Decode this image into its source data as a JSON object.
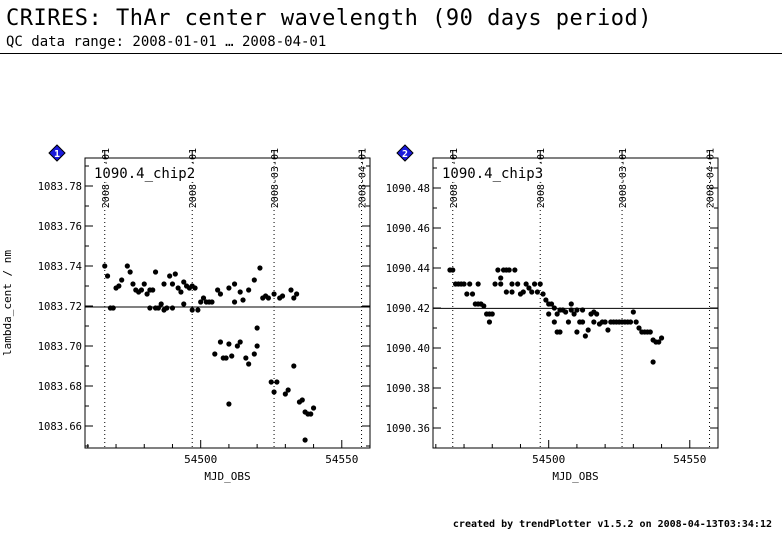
{
  "header": {
    "title": "CRIRES: ThAr center wavelength (90 days period)",
    "subtitle": "QC data range: 2008-01-01 … 2008-04-01"
  },
  "footer": {
    "text": "created by trendPlotter v1.5.2 on 2008-04-13T03:34:12"
  },
  "colors": {
    "badge": "#1a1adc",
    "badge_border": "#000000",
    "points": "#000000",
    "axes": "#000000"
  },
  "chart_data": [
    {
      "type": "scatter",
      "badge": "1",
      "label": "1090.4_chip2",
      "xlabel": "MJD_OBS",
      "ylabel": "lambda_cent / nm",
      "xlim": [
        54459,
        54560
      ],
      "ylim": [
        1083.649,
        1083.794
      ],
      "xticks": [
        54500,
        54550
      ],
      "yticks": [
        1083.66,
        1083.68,
        1083.7,
        1083.72,
        1083.74,
        1083.76,
        1083.78
      ],
      "ytick_labels": [
        "1083.66",
        "1083.68",
        "1083.70",
        "1083.72",
        "1083.74",
        "1083.76",
        "1083.78"
      ],
      "date_markers": [
        {
          "mjd": 54466,
          "label": "2008-01-01"
        },
        {
          "mjd": 54497,
          "label": "2008-02-01"
        },
        {
          "mjd": 54526,
          "label": "2008-03-01"
        },
        {
          "mjd": 54557,
          "label": "2008-04-01"
        }
      ],
      "reference_line": 1083.7195,
      "points": [
        [
          54466,
          1083.74
        ],
        [
          54467,
          1083.735
        ],
        [
          54468,
          1083.719
        ],
        [
          54469,
          1083.719
        ],
        [
          54470,
          1083.729
        ],
        [
          54471,
          1083.73
        ],
        [
          54472,
          1083.733
        ],
        [
          54474,
          1083.74
        ],
        [
          54475,
          1083.737
        ],
        [
          54476,
          1083.731
        ],
        [
          54477,
          1083.728
        ],
        [
          54478,
          1083.727
        ],
        [
          54479,
          1083.728
        ],
        [
          54480,
          1083.731
        ],
        [
          54481,
          1083.726
        ],
        [
          54482,
          1083.728
        ],
        [
          54482,
          1083.719
        ],
        [
          54483,
          1083.728
        ],
        [
          54484,
          1083.737
        ],
        [
          54484,
          1083.719
        ],
        [
          54485,
          1083.719
        ],
        [
          54486,
          1083.721
        ],
        [
          54487,
          1083.731
        ],
        [
          54487,
          1083.718
        ],
        [
          54488,
          1083.719
        ],
        [
          54489,
          1083.735
        ],
        [
          54490,
          1083.731
        ],
        [
          54490,
          1083.719
        ],
        [
          54491,
          1083.736
        ],
        [
          54492,
          1083.729
        ],
        [
          54493,
          1083.727
        ],
        [
          54494,
          1083.732
        ],
        [
          54494,
          1083.721
        ],
        [
          54495,
          1083.73
        ],
        [
          54496,
          1083.729
        ],
        [
          54497,
          1083.73
        ],
        [
          54497,
          1083.718
        ],
        [
          54498,
          1083.729
        ],
        [
          54499,
          1083.718
        ],
        [
          54500,
          1083.722
        ],
        [
          54501,
          1083.724
        ],
        [
          54502,
          1083.722
        ],
        [
          54503,
          1083.722
        ],
        [
          54504,
          1083.722
        ],
        [
          54505,
          1083.696
        ],
        [
          54506,
          1083.728
        ],
        [
          54507,
          1083.702
        ],
        [
          54507,
          1083.726
        ],
        [
          54508,
          1083.694
        ],
        [
          54509,
          1083.694
        ],
        [
          54510,
          1083.701
        ],
        [
          54510,
          1083.729
        ],
        [
          54510,
          1083.671
        ],
        [
          54511,
          1083.695
        ],
        [
          54512,
          1083.731
        ],
        [
          54512,
          1083.722
        ],
        [
          54513,
          1083.7
        ],
        [
          54514,
          1083.702
        ],
        [
          54514,
          1083.727
        ],
        [
          54515,
          1083.723
        ],
        [
          54516,
          1083.694
        ],
        [
          54517,
          1083.728
        ],
        [
          54517,
          1083.691
        ],
        [
          54519,
          1083.733
        ],
        [
          54519,
          1083.696
        ],
        [
          54520,
          1083.709
        ],
        [
          54520,
          1083.7
        ],
        [
          54521,
          1083.739
        ],
        [
          54522,
          1083.724
        ],
        [
          54523,
          1083.725
        ],
        [
          54524,
          1083.724
        ],
        [
          54525,
          1083.682
        ],
        [
          54526,
          1083.677
        ],
        [
          54526,
          1083.726
        ],
        [
          54527,
          1083.682
        ],
        [
          54528,
          1083.724
        ],
        [
          54529,
          1083.725
        ],
        [
          54530,
          1083.676
        ],
        [
          54531,
          1083.678
        ],
        [
          54532,
          1083.728
        ],
        [
          54533,
          1083.69
        ],
        [
          54533,
          1083.724
        ],
        [
          54534,
          1083.726
        ],
        [
          54535,
          1083.672
        ],
        [
          54536,
          1083.673
        ],
        [
          54537,
          1083.667
        ],
        [
          54537,
          1083.653
        ],
        [
          54538,
          1083.666
        ],
        [
          54539,
          1083.666
        ],
        [
          54540,
          1083.669
        ]
      ]
    },
    {
      "type": "scatter",
      "badge": "2",
      "label": "1090.4_chip3",
      "xlabel": "MJD_OBS",
      "ylabel": "",
      "xlim": [
        54459,
        54560
      ],
      "ylim": [
        1090.35,
        1090.495
      ],
      "xticks": [
        54500,
        54550
      ],
      "yticks": [
        1090.36,
        1090.38,
        1090.4,
        1090.42,
        1090.44,
        1090.46,
        1090.48
      ],
      "ytick_labels": [
        "1090.36",
        "1090.38",
        "1090.40",
        "1090.42",
        "1090.44",
        "1090.46",
        "1090.48"
      ],
      "date_markers": [
        {
          "mjd": 54466,
          "label": "2008-01-01"
        },
        {
          "mjd": 54497,
          "label": "2008-02-01"
        },
        {
          "mjd": 54526,
          "label": "2008-03-01"
        },
        {
          "mjd": 54557,
          "label": "2008-04-01"
        }
      ],
      "reference_line": 1090.4198,
      "points": [
        [
          54465,
          1090.439
        ],
        [
          54466,
          1090.439
        ],
        [
          54467,
          1090.432
        ],
        [
          54468,
          1090.432
        ],
        [
          54469,
          1090.432
        ],
        [
          54470,
          1090.432
        ],
        [
          54471,
          1090.427
        ],
        [
          54472,
          1090.432
        ],
        [
          54473,
          1090.427
        ],
        [
          54474,
          1090.422
        ],
        [
          54475,
          1090.422
        ],
        [
          54475,
          1090.432
        ],
        [
          54476,
          1090.422
        ],
        [
          54477,
          1090.421
        ],
        [
          54478,
          1090.417
        ],
        [
          54479,
          1090.417
        ],
        [
          54479,
          1090.413
        ],
        [
          54480,
          1090.417
        ],
        [
          54481,
          1090.432
        ],
        [
          54482,
          1090.439
        ],
        [
          54483,
          1090.435
        ],
        [
          54483,
          1090.432
        ],
        [
          54484,
          1090.439
        ],
        [
          54485,
          1090.439
        ],
        [
          54485,
          1090.428
        ],
        [
          54486,
          1090.439
        ],
        [
          54487,
          1090.432
        ],
        [
          54487,
          1090.428
        ],
        [
          54488,
          1090.439
        ],
        [
          54489,
          1090.432
        ],
        [
          54490,
          1090.427
        ],
        [
          54491,
          1090.428
        ],
        [
          54492,
          1090.432
        ],
        [
          54493,
          1090.43
        ],
        [
          54494,
          1090.428
        ],
        [
          54495,
          1090.432
        ],
        [
          54496,
          1090.428
        ],
        [
          54497,
          1090.432
        ],
        [
          54498,
          1090.427
        ],
        [
          54499,
          1090.424
        ],
        [
          54500,
          1090.422
        ],
        [
          54500,
          1090.417
        ],
        [
          54501,
          1090.422
        ],
        [
          54502,
          1090.413
        ],
        [
          54502,
          1090.42
        ],
        [
          54503,
          1090.408
        ],
        [
          54503,
          1090.417
        ],
        [
          54504,
          1090.408
        ],
        [
          54504,
          1090.419
        ],
        [
          54505,
          1090.419
        ],
        [
          54506,
          1090.418
        ],
        [
          54507,
          1090.413
        ],
        [
          54508,
          1090.422
        ],
        [
          54508,
          1090.419
        ],
        [
          54509,
          1090.417
        ],
        [
          54510,
          1090.408
        ],
        [
          54510,
          1090.419
        ],
        [
          54511,
          1090.413
        ],
        [
          54512,
          1090.413
        ],
        [
          54512,
          1090.419
        ],
        [
          54513,
          1090.406
        ],
        [
          54514,
          1090.409
        ],
        [
          54515,
          1090.417
        ],
        [
          54516,
          1090.413
        ],
        [
          54516,
          1090.418
        ],
        [
          54517,
          1090.417
        ],
        [
          54518,
          1090.412
        ],
        [
          54519,
          1090.413
        ],
        [
          54520,
          1090.413
        ],
        [
          54521,
          1090.409
        ],
        [
          54522,
          1090.413
        ],
        [
          54523,
          1090.413
        ],
        [
          54524,
          1090.413
        ],
        [
          54525,
          1090.413
        ],
        [
          54526,
          1090.413
        ],
        [
          54527,
          1090.413
        ],
        [
          54528,
          1090.413
        ],
        [
          54529,
          1090.413
        ],
        [
          54530,
          1090.418
        ],
        [
          54531,
          1090.413
        ],
        [
          54532,
          1090.41
        ],
        [
          54533,
          1090.408
        ],
        [
          54534,
          1090.408
        ],
        [
          54535,
          1090.408
        ],
        [
          54536,
          1090.408
        ],
        [
          54537,
          1090.393
        ],
        [
          54537,
          1090.404
        ],
        [
          54538,
          1090.403
        ],
        [
          54539,
          1090.403
        ],
        [
          54540,
          1090.405
        ]
      ]
    }
  ]
}
